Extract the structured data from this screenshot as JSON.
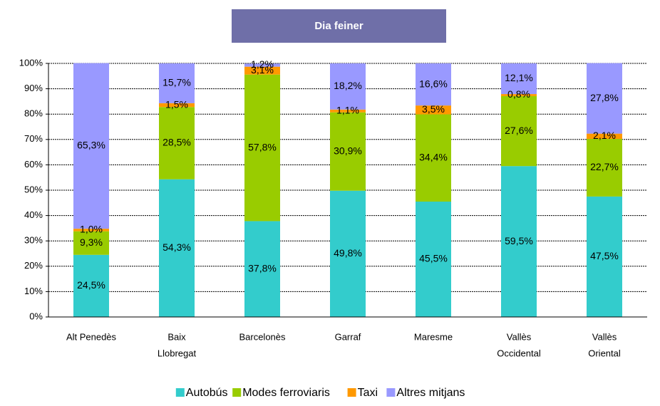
{
  "chart_data": {
    "type": "stacked_bar",
    "title": "Dia feiner",
    "categories": [
      [
        "Alt Penedès"
      ],
      [
        "Baix",
        "Llobregat"
      ],
      [
        "Barcelonès"
      ],
      [
        "Garraf"
      ],
      [
        "Maresme"
      ],
      [
        "Vallès",
        "Occidental"
      ],
      [
        "Vallès",
        "Oriental"
      ]
    ],
    "series": [
      {
        "name": "Autobús",
        "color": "#33CCCC",
        "values": [
          24.5,
          54.3,
          37.8,
          49.8,
          45.5,
          59.5,
          47.5
        ],
        "value_labels": [
          "24,5%",
          "54,3%",
          "37,8%",
          "49,8%",
          "45,5%",
          "59,5%",
          "47,5%"
        ]
      },
      {
        "name": "Modes ferroviaris",
        "color": "#99CC00",
        "values": [
          9.3,
          28.5,
          57.8,
          30.9,
          34.4,
          27.6,
          22.7
        ],
        "value_labels": [
          "9,3%",
          "28,5%",
          "57,8%",
          "30,9%",
          "34,4%",
          "27,6%",
          "22,7%"
        ]
      },
      {
        "name": "Taxi",
        "color": "#FF9900",
        "values": [
          1.0,
          1.5,
          3.1,
          1.1,
          3.5,
          0.8,
          2.1
        ],
        "value_labels": [
          "1,0%",
          "1,5%",
          "3,1%",
          "1,1%",
          "3,5%",
          "0,8%",
          "2,1%"
        ]
      },
      {
        "name": "Altres mitjans",
        "color": "#9999FF",
        "values": [
          65.3,
          15.7,
          1.2,
          18.2,
          16.6,
          12.1,
          27.8
        ],
        "value_labels": [
          "65,3%",
          "15,7%",
          "1,2%",
          "18,2%",
          "16,6%",
          "12,1%",
          "27,8%"
        ]
      }
    ],
    "ylim": [
      0,
      100
    ],
    "yticks": [
      {
        "value": 0,
        "label": "0%"
      },
      {
        "value": 10,
        "label": "10%"
      },
      {
        "value": 20,
        "label": "20%"
      },
      {
        "value": 30,
        "label": "30%"
      },
      {
        "value": 40,
        "label": "40%"
      },
      {
        "value": 50,
        "label": "50%"
      },
      {
        "value": 60,
        "label": "60%"
      },
      {
        "value": 70,
        "label": "70%"
      },
      {
        "value": 80,
        "label": "80%"
      },
      {
        "value": 90,
        "label": "90%"
      },
      {
        "value": 100,
        "label": "100%"
      }
    ],
    "grid": true,
    "legend": "bottom"
  }
}
